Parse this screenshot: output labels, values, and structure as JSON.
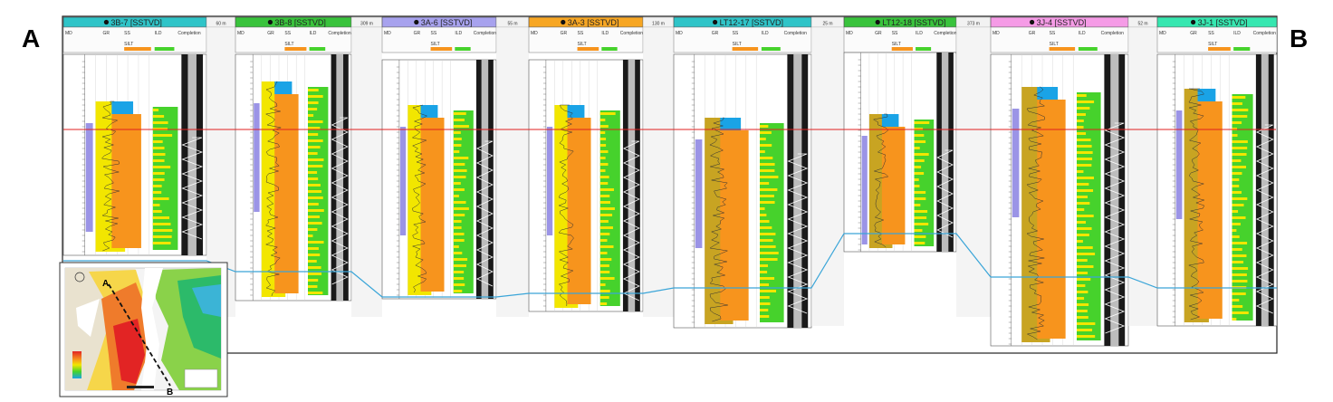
{
  "corner_labels": {
    "left": "A",
    "right": "B"
  },
  "wells": [
    {
      "name": "3B-7 [SSTVD]",
      "header_color": "#2fc4c8",
      "spacing_after": "60 m"
    },
    {
      "name": "3B-8 [SSTVD]",
      "header_color": "#39c33c",
      "spacing_after": "309 m"
    },
    {
      "name": "3A-6 [SSTVD]",
      "header_color": "#a7a2ee",
      "spacing_after": "55 m"
    },
    {
      "name": "3A-3 [SSTVD]",
      "header_color": "#f7a623",
      "spacing_after": "130 m"
    },
    {
      "name": "LT12-17 [SSTVD]",
      "header_color": "#2fc4c8",
      "spacing_after": "25 m"
    },
    {
      "name": "LT12-18 [SSTVD]",
      "header_color": "#39c33c",
      "spacing_after": "373 m"
    },
    {
      "name": "3J-4 [SSTVD]",
      "header_color": "#f59be6",
      "spacing_after": "52 m"
    },
    {
      "name": "3J-1 [SSTVD]",
      "header_color": "#36e7b0",
      "spacing_after": ""
    }
  ],
  "track_labels": {
    "md": "MD",
    "gr": "GR",
    "ss": "SS",
    "silt": "SILT",
    "ild": "ILD",
    "completion": "Completion"
  },
  "colors": {
    "sand": "#f7941d",
    "silt": "#f2e600",
    "shale": "#c8a422",
    "green": "#46d22c",
    "water": "#1aa3e6",
    "pink": "#f5a0c8",
    "marker_red": "#e02020",
    "marker_blue": "#3aa5d8",
    "md_band": "#9b94e6"
  },
  "inset_map": {
    "section_start": "A",
    "section_end": "B"
  }
}
